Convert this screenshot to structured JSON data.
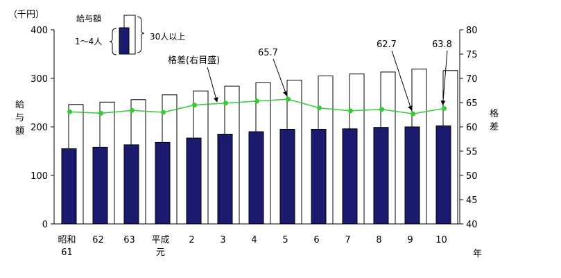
{
  "chart_data": {
    "type": "bar",
    "y_unit": "（千円）",
    "ylabel_chars": [
      "給",
      "与",
      "額"
    ],
    "y2label_chars": [
      "格",
      "差"
    ],
    "xlabel": "年",
    "categories": [
      [
        "昭和",
        "61"
      ],
      [
        "62"
      ],
      [
        "63"
      ],
      [
        "平成",
        "元"
      ],
      [
        "2"
      ],
      [
        "3"
      ],
      [
        "4"
      ],
      [
        "5"
      ],
      [
        "6"
      ],
      [
        "7"
      ],
      [
        "8"
      ],
      [
        "9"
      ],
      [
        "10"
      ]
    ],
    "ylim": [
      0,
      400
    ],
    "yticks": [
      0,
      100,
      200,
      300,
      400
    ],
    "y2lim": [
      40,
      80
    ],
    "y2ticks": [
      40,
      45,
      50,
      55,
      60,
      65,
      70,
      75,
      80
    ],
    "series": [
      {
        "key": "small",
        "kind": "bar",
        "axis": "left",
        "color": "#1a1a6e",
        "values": [
          155,
          158,
          163,
          168,
          177,
          185,
          190,
          195,
          195,
          196,
          199,
          200,
          202
        ]
      },
      {
        "key": "large",
        "kind": "bar",
        "axis": "left",
        "color": "#ffffff",
        "values": [
          246,
          251,
          256,
          266,
          274,
          284,
          291,
          296,
          305,
          309,
          313,
          319,
          316
        ]
      },
      {
        "key": "gap",
        "kind": "line",
        "axis": "right",
        "color": "#33cc33",
        "values": [
          63.1,
          62.8,
          63.4,
          63.0,
          64.5,
          64.9,
          65.3,
          65.7,
          63.9,
          63.3,
          63.6,
          62.7,
          63.8
        ]
      }
    ],
    "legend": {
      "title": "給与額",
      "small_label": "1～4人",
      "large_label": "30人以上",
      "gap_label": "格差(右目盛)"
    },
    "annotations": [
      {
        "index": 7,
        "text": "65.7"
      },
      {
        "index": 11,
        "text": "62.7"
      },
      {
        "index": 12,
        "text": "63.8"
      }
    ]
  }
}
